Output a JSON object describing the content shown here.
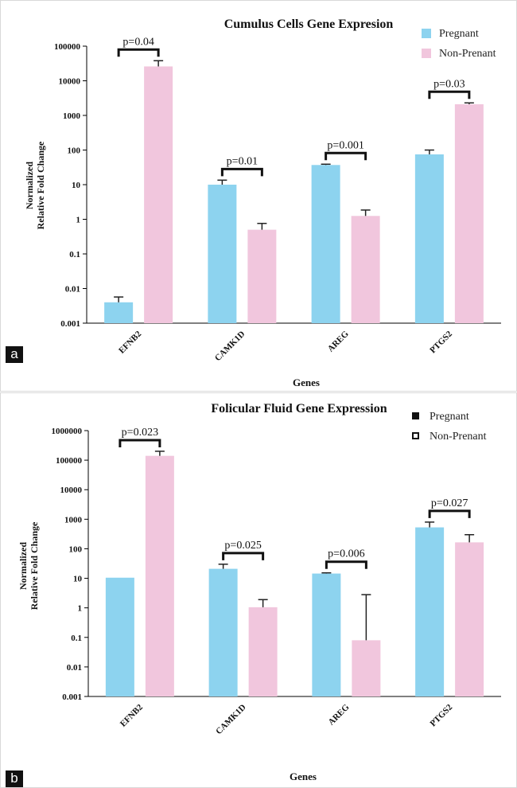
{
  "panels": [
    {
      "tag": "a"
    },
    {
      "tag": "b"
    }
  ],
  "chart_data": [
    {
      "type": "bar",
      "title": "Cumulus Cells Gene Expresion",
      "xlabel": "Genes",
      "ylabel": [
        "Normalized",
        "Relative Fold Change"
      ],
      "yscale": "log",
      "ylim": [
        0.001,
        100000
      ],
      "yticks": [
        "0.001",
        "0.01",
        "0.1",
        "1",
        "10",
        "100",
        "1000",
        "10000",
        "100000"
      ],
      "categories": [
        "EFNB2",
        "CAMK1D",
        "AREG",
        "PTGS2"
      ],
      "legend_position": "top-right",
      "series": [
        {
          "name": "Pregnant",
          "color": "#8dd3ef",
          "values": [
            0.004,
            10,
            37,
            75
          ],
          "errors_upper": [
            0.0057,
            13.5,
            39,
            100
          ]
        },
        {
          "name": "Non-Prenant",
          "color": "#f1c6dd",
          "values": [
            26000,
            0.5,
            1.25,
            2100
          ],
          "errors_upper": [
            38000,
            0.76,
            1.85,
            2300
          ]
        }
      ],
      "annotations": [
        "p=0.04",
        "p=0.01",
        "p=0.001",
        "p=0.03"
      ]
    },
    {
      "type": "bar",
      "title": "Folicular Fluid Gene Expression",
      "xlabel": "Genes",
      "ylabel": [
        "Normalized",
        "Relative Fold Change"
      ],
      "yscale": "log",
      "ylim": [
        0.001,
        1000000
      ],
      "yticks": [
        "0.001",
        "0.01",
        "0.1",
        "1",
        "10",
        "100",
        "1000",
        "10000",
        "100000",
        "1000000"
      ],
      "categories": [
        "EFNB2",
        "CAMK1D",
        "AREG",
        "PTGS2"
      ],
      "legend_position": "top-right",
      "series": [
        {
          "name": "Pregnant",
          "color": "#8dd3ef",
          "values": [
            10.5,
            21,
            14.5,
            530
          ],
          "errors_upper": [
            null,
            30,
            15.3,
            800
          ]
        },
        {
          "name": "Non-Prenant",
          "color": "#f1c6dd",
          "values": [
            140000,
            1.05,
            0.08,
            165
          ],
          "errors_upper": [
            200000,
            1.9,
            2.8,
            300
          ]
        }
      ],
      "annotations": [
        "p=0.023",
        "p=0.025",
        "p=0.006",
        "p=0.027"
      ]
    }
  ]
}
